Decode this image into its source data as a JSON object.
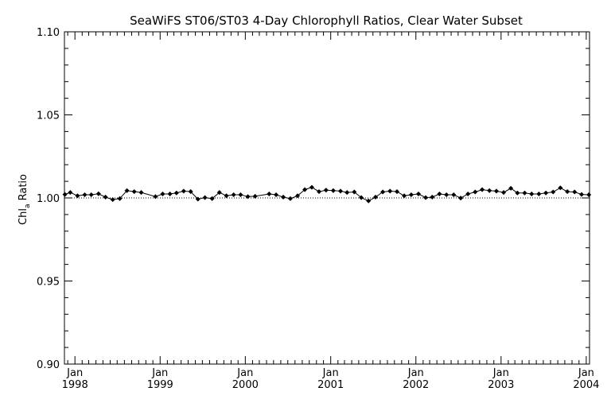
{
  "chart_data": {
    "type": "line",
    "title": "SeaWiFS ST06/ST03 4-Day Chlorophyll Ratios, Clear Water Subset",
    "ylabel": "Chl",
    "ylabel_sub": "a",
    "ylabel_rest": " Ratio",
    "ylim": [
      0.9,
      1.1
    ],
    "xlim": [
      "1997-11-17",
      "2004-01-15"
    ],
    "y_ticks": [
      "0.90",
      "0.95",
      "1.00",
      "1.05",
      "1.10"
    ],
    "x_ticks": [
      {
        "date": "1998-01-01",
        "month": "Jan",
        "year": "1998"
      },
      {
        "date": "1999-01-01",
        "month": "Jan",
        "year": "1999"
      },
      {
        "date": "2000-01-01",
        "month": "Jan",
        "year": "2000"
      },
      {
        "date": "2001-01-01",
        "month": "Jan",
        "year": "2001"
      },
      {
        "date": "2002-01-01",
        "month": "Jan",
        "year": "2002"
      },
      {
        "date": "2003-01-01",
        "month": "Jan",
        "year": "2003"
      },
      {
        "date": "2004-01-01",
        "month": "Jan",
        "year": "2004"
      }
    ],
    "reference_line": 1.0,
    "grid": false,
    "series": [
      {
        "marker": "diamond",
        "points": [
          [
            "1997-11-19",
            1.0021
          ],
          [
            "1997-12-12",
            1.0033
          ],
          [
            "1998-01-12",
            1.0013
          ],
          [
            "1998-02-12",
            1.0019
          ],
          [
            "1998-03-12",
            1.0019
          ],
          [
            "1998-04-12",
            1.0025
          ],
          [
            "1998-05-12",
            1.0005
          ],
          [
            "1998-06-12",
            0.999
          ],
          [
            "1998-07-12",
            0.9996
          ],
          [
            "1998-08-12",
            1.0044
          ],
          [
            "1998-09-12",
            1.0038
          ],
          [
            "1998-10-12",
            1.0033
          ],
          [
            "1998-12-12",
            1.0008
          ],
          [
            "1999-01-12",
            1.0024
          ],
          [
            "1999-02-12",
            1.0024
          ],
          [
            "1999-03-12",
            1.003
          ],
          [
            "1999-04-12",
            1.0041
          ],
          [
            "1999-05-12",
            1.0038
          ],
          [
            "1999-06-12",
            0.9993
          ],
          [
            "1999-07-12",
            1.0002
          ],
          [
            "1999-08-12",
            0.9996
          ],
          [
            "1999-09-12",
            1.0033
          ],
          [
            "1999-10-12",
            1.0013
          ],
          [
            "1999-11-12",
            1.0019
          ],
          [
            "1999-12-12",
            1.0019
          ],
          [
            "2000-01-12",
            1.0008
          ],
          [
            "2000-02-12",
            1.001
          ],
          [
            "2000-04-12",
            1.0024
          ],
          [
            "2000-05-12",
            1.0019
          ],
          [
            "2000-06-12",
            1.0005
          ],
          [
            "2000-07-12",
            0.9996
          ],
          [
            "2000-08-12",
            1.0013
          ],
          [
            "2000-09-12",
            1.005
          ],
          [
            "2000-10-12",
            1.0064
          ],
          [
            "2000-11-12",
            1.0038
          ],
          [
            "2000-12-12",
            1.0047
          ],
          [
            "2001-01-12",
            1.0044
          ],
          [
            "2001-02-12",
            1.0041
          ],
          [
            "2001-03-12",
            1.0033
          ],
          [
            "2001-04-12",
            1.0036
          ],
          [
            "2001-05-12",
            1.0002
          ],
          [
            "2001-06-12",
            0.9982
          ],
          [
            "2001-07-12",
            1.0005
          ],
          [
            "2001-08-12",
            1.0036
          ],
          [
            "2001-09-12",
            1.0041
          ],
          [
            "2001-10-12",
            1.0038
          ],
          [
            "2001-11-12",
            1.0013
          ],
          [
            "2001-12-12",
            1.0019
          ],
          [
            "2002-01-12",
            1.0024
          ],
          [
            "2002-02-12",
            1.0002
          ],
          [
            "2002-03-12",
            1.0005
          ],
          [
            "2002-04-12",
            1.0024
          ],
          [
            "2002-05-12",
            1.0019
          ],
          [
            "2002-06-12",
            1.0019
          ],
          [
            "2002-07-12",
            0.9999
          ],
          [
            "2002-08-12",
            1.0024
          ],
          [
            "2002-09-12",
            1.0036
          ],
          [
            "2002-10-12",
            1.005
          ],
          [
            "2002-11-12",
            1.0044
          ],
          [
            "2002-12-12",
            1.0041
          ],
          [
            "2003-01-12",
            1.0033
          ],
          [
            "2003-02-12",
            1.0058
          ],
          [
            "2003-03-12",
            1.003
          ],
          [
            "2003-04-12",
            1.003
          ],
          [
            "2003-05-12",
            1.0024
          ],
          [
            "2003-06-12",
            1.0024
          ],
          [
            "2003-07-12",
            1.003
          ],
          [
            "2003-08-12",
            1.0036
          ],
          [
            "2003-09-12",
            1.0061
          ],
          [
            "2003-10-12",
            1.0038
          ],
          [
            "2003-11-12",
            1.0036
          ],
          [
            "2003-12-12",
            1.0021
          ],
          [
            "2004-01-12",
            1.0019
          ]
        ]
      }
    ]
  }
}
